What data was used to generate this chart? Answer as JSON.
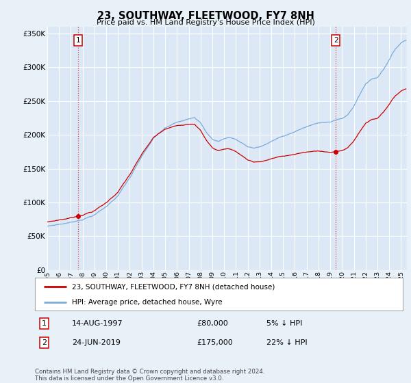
{
  "title": "23, SOUTHWAY, FLEETWOOD, FY7 8NH",
  "subtitle": "Price paid vs. HM Land Registry's House Price Index (HPI)",
  "background_color": "#e8f0f8",
  "plot_bg_color": "#dce8f5",
  "grid_color": "#ffffff",
  "ylim": [
    0,
    360000
  ],
  "yticks": [
    0,
    50000,
    100000,
    150000,
    200000,
    250000,
    300000,
    350000
  ],
  "ytick_labels": [
    "£0",
    "£50K",
    "£100K",
    "£150K",
    "£200K",
    "£250K",
    "£300K",
    "£350K"
  ],
  "xmin_year": 1995.0,
  "xmax_year": 2025.5,
  "transaction1_year": 1997.619,
  "transaction1_price": 80000,
  "transaction2_year": 2019.479,
  "transaction2_price": 175000,
  "red_line_color": "#cc0000",
  "blue_line_color": "#7aabda",
  "dashed_line_color": "#dd4444",
  "legend_label1": "23, SOUTHWAY, FLEETWOOD, FY7 8NH (detached house)",
  "legend_label2": "HPI: Average price, detached house, Wyre",
  "footer": "Contains HM Land Registry data © Crown copyright and database right 2024.\nThis data is licensed under the Open Government Licence v3.0.",
  "xtickyears": [
    1995,
    1996,
    1997,
    1998,
    1999,
    2000,
    2001,
    2002,
    2003,
    2004,
    2005,
    2006,
    2007,
    2008,
    2009,
    2010,
    2011,
    2012,
    2013,
    2014,
    2015,
    2016,
    2017,
    2018,
    2019,
    2020,
    2021,
    2022,
    2023,
    2024,
    2025
  ]
}
